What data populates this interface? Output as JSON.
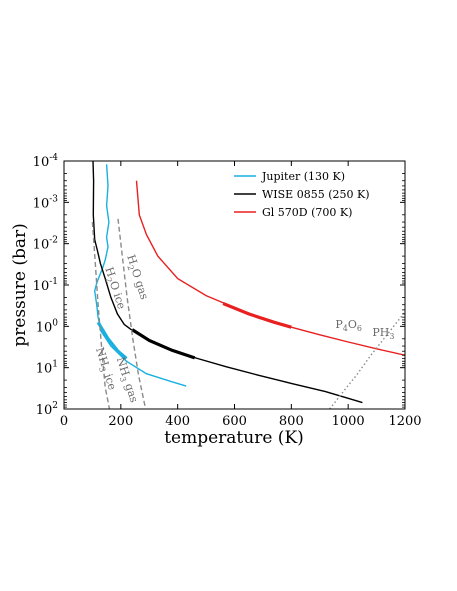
{
  "chart_data": {
    "type": "line",
    "xlabel": "temperature (K)",
    "ylabel": "pressure (bar)",
    "xlim": [
      0,
      1200
    ],
    "ylim": [
      0.0001,
      100
    ],
    "y_scale": "log",
    "y_inverted": true,
    "x_ticks": [
      "0",
      "200",
      "400",
      "600",
      "800",
      "1000",
      "1200"
    ],
    "y_ticks": [
      {
        "base": "10",
        "exp": "-4"
      },
      {
        "base": "10",
        "exp": "-3"
      },
      {
        "base": "10",
        "exp": "-2"
      },
      {
        "base": "10",
        "exp": "-1"
      },
      {
        "base": "10",
        "exp": "0"
      },
      {
        "base": "10",
        "exp": "1"
      },
      {
        "base": "10",
        "exp": "2"
      }
    ],
    "legend_position": "top-right",
    "grid": false,
    "series": [
      {
        "name": "Jupiter (130 K)",
        "color": "#1ab0e0",
        "style": "solid",
        "points": [
          [
            150,
            0.00012
          ],
          [
            155,
            0.0004
          ],
          [
            150,
            0.0012
          ],
          [
            158,
            0.003
          ],
          [
            150,
            0.007
          ],
          [
            155,
            0.012
          ],
          [
            145,
            0.025
          ],
          [
            135,
            0.04
          ],
          [
            125,
            0.06
          ],
          [
            115,
            0.09
          ],
          [
            108,
            0.14
          ],
          [
            115,
            0.3
          ],
          [
            120,
            0.6
          ],
          [
            130,
            1.3
          ],
          [
            165,
            3
          ],
          [
            220,
            7
          ],
          [
            290,
            14
          ],
          [
            380,
            22
          ],
          [
            430,
            28
          ]
        ],
        "thick_segment": [
          [
            120,
            0.8
          ],
          [
            155,
            2
          ],
          [
            190,
            4
          ],
          [
            220,
            6
          ]
        ]
      },
      {
        "name": "WISE 0855 (250 K)",
        "color": "#000000",
        "style": "solid",
        "points": [
          [
            102,
            0.0001
          ],
          [
            104,
            0.0003
          ],
          [
            103,
            0.002
          ],
          [
            108,
            0.008
          ],
          [
            118,
            0.015
          ],
          [
            128,
            0.03
          ],
          [
            145,
            0.07
          ],
          [
            165,
            0.2
          ],
          [
            188,
            0.5
          ],
          [
            212,
            0.9
          ],
          [
            250,
            1.4
          ],
          [
            300,
            2.2
          ],
          [
            380,
            3.8
          ],
          [
            470,
            6
          ],
          [
            570,
            9.5
          ],
          [
            680,
            15
          ],
          [
            800,
            24
          ],
          [
            920,
            38
          ],
          [
            1000,
            55
          ],
          [
            1050,
            70
          ]
        ],
        "thick_segment": [
          [
            240,
            1.2
          ],
          [
            300,
            2.2
          ],
          [
            380,
            3.8
          ],
          [
            460,
            5.8
          ]
        ]
      },
      {
        "name": "Gl 570D (700 K)",
        "color": "#e82020",
        "style": "solid",
        "points": [
          [
            255,
            0.0003
          ],
          [
            265,
            0.002
          ],
          [
            290,
            0.006
          ],
          [
            330,
            0.02
          ],
          [
            400,
            0.07
          ],
          [
            500,
            0.18
          ],
          [
            600,
            0.35
          ],
          [
            700,
            0.65
          ],
          [
            800,
            1.05
          ],
          [
            900,
            1.6
          ],
          [
            1000,
            2.4
          ],
          [
            1100,
            3.5
          ],
          [
            1200,
            5
          ]
        ],
        "thick_segment": [
          [
            560,
            0.28
          ],
          [
            650,
            0.5
          ],
          [
            740,
            0.8
          ],
          [
            800,
            1.05
          ]
        ]
      },
      {
        "name": "",
        "color": "#8a8a8a",
        "style": "dashed",
        "points": [
          [
            100,
            0.003
          ],
          [
            110,
            0.03
          ],
          [
            120,
            0.3
          ],
          [
            132,
            3
          ],
          [
            145,
            30
          ],
          [
            160,
            100
          ]
        ]
      },
      {
        "name": "",
        "color": "#8a8a8a",
        "style": "dashed",
        "points": [
          [
            190,
            0.0025
          ],
          [
            205,
            0.02
          ],
          [
            222,
            0.2
          ],
          [
            242,
            2
          ],
          [
            262,
            15
          ],
          [
            287,
            100
          ]
        ]
      },
      {
        "name": "",
        "color": "#8a8a8a",
        "style": "dotted",
        "points": [
          [
            935,
            100
          ],
          [
            980,
            40
          ],
          [
            1030,
            15
          ],
          [
            1080,
            5
          ],
          [
            1140,
            1.5
          ],
          [
            1200,
            0.45
          ]
        ]
      }
    ],
    "annotations": [
      {
        "parts": [
          {
            "t": "H"
          },
          {
            "t": "2",
            "sub": true
          },
          {
            "t": "O ice"
          }
        ],
        "rotate": 72,
        "x": 145,
        "y": 0.04
      },
      {
        "parts": [
          {
            "t": "H"
          },
          {
            "t": "2",
            "sub": true
          },
          {
            "t": "O gas"
          }
        ],
        "rotate": 72,
        "x": 222,
        "y": 0.02
      },
      {
        "parts": [
          {
            "t": "NH"
          },
          {
            "t": "3",
            "sub": true
          },
          {
            "t": " ice"
          }
        ],
        "rotate": 72,
        "x": 112,
        "y": 3.5
      },
      {
        "parts": [
          {
            "t": "NH"
          },
          {
            "t": "3",
            "sub": true
          },
          {
            "t": " gas"
          }
        ],
        "rotate": 72,
        "x": 185,
        "y": 6
      },
      {
        "parts": [
          {
            "t": "P"
          },
          {
            "t": "4",
            "sub": true
          },
          {
            "t": "O"
          },
          {
            "t": "6",
            "sub": true
          }
        ],
        "rotate": 0,
        "x": 955,
        "y": 1.1
      },
      {
        "parts": [
          {
            "t": "PH"
          },
          {
            "t": "3",
            "sub": true
          }
        ],
        "rotate": 0,
        "x": 1085,
        "y": 1.7
      }
    ]
  }
}
